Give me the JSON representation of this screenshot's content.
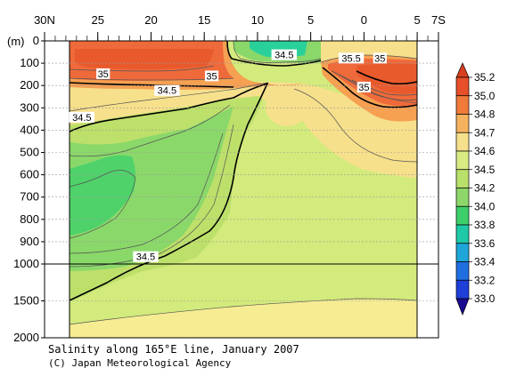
{
  "chart_data": {
    "type": "contour",
    "title": "Salinity along 165°E line, January 2007",
    "credit": "(C) Japan Meteorological Agency",
    "x_axis": {
      "ticks": [
        "30N",
        "25",
        "20",
        "15",
        "10",
        "5",
        "0",
        "5",
        "7S"
      ],
      "tick_latitudes": [
        30,
        25,
        20,
        15,
        10,
        5,
        0,
        -5,
        -7
      ],
      "range": [
        30,
        -7
      ],
      "label": ""
    },
    "y_axis": {
      "unit_label": "(m)",
      "ticks": [
        "0",
        "100",
        "200",
        "300",
        "400",
        "500",
        "600",
        "700",
        "800",
        "900",
        "1000",
        "1500",
        "2000"
      ],
      "tick_depths": [
        0,
        100,
        200,
        300,
        400,
        500,
        600,
        700,
        800,
        900,
        1000,
        1500,
        2000
      ],
      "range": [
        0,
        2000
      ],
      "scale_break_at": 1000
    },
    "colorbar": {
      "levels": [
        "35.2",
        "35.0",
        "34.8",
        "34.7",
        "34.6",
        "34.5",
        "34.2",
        "34.0",
        "33.8",
        "33.6",
        "33.4",
        "33.2",
        "33.0"
      ],
      "colors": [
        "#e8502a",
        "#f07a3a",
        "#f6b25e",
        "#f7e08c",
        "#d9ec84",
        "#b8e06a",
        "#8fd66a",
        "#3fcf6a",
        "#1fc9a8",
        "#1fa6d8",
        "#1f6fe0",
        "#1f3fd8",
        "#2010c8"
      ],
      "max_extension_color": "#d84020",
      "min_extension_color": "#1a0a90"
    },
    "contour_labels": [
      "34.5",
      "35",
      "35.5",
      "35",
      "35",
      "34.5",
      "34.5",
      "35",
      "34.5"
    ],
    "fill_colors": {
      "high_saline": "#ef6a3a",
      "very_high": "#e85a2c",
      "orange": "#f6a052",
      "yellow": "#f7e08c",
      "light_yellow": "#f6ec92",
      "pale_green": "#d3ea7c",
      "yellow_green": "#bde06a",
      "green": "#8ad86a",
      "green_strong": "#4fd26a",
      "cyan_green": "#2ad09a"
    }
  }
}
